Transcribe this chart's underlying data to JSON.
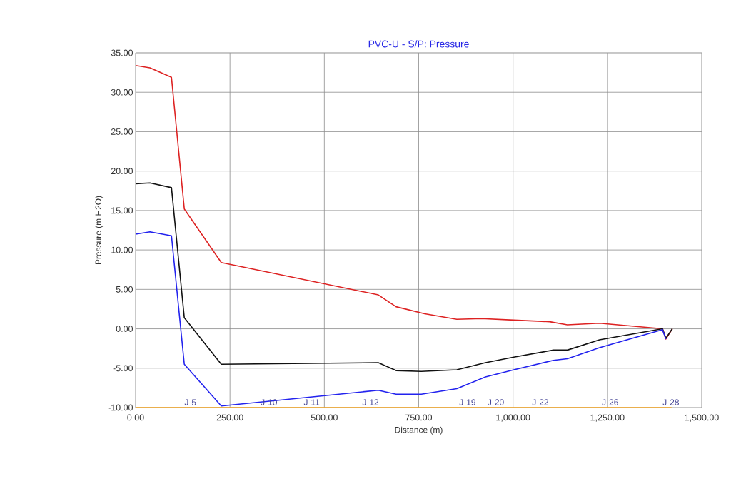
{
  "chart_data": {
    "type": "line",
    "title": "PVC-U  - S/P: Pressure",
    "xlabel": "Distance (m)",
    "ylabel": "Pressure (m H2O)",
    "xlim": [
      0,
      1500
    ],
    "ylim": [
      -10,
      35
    ],
    "xticks": [
      {
        "value": 0,
        "label": "0.00"
      },
      {
        "value": 250,
        "label": "250.00"
      },
      {
        "value": 500,
        "label": "500.00"
      },
      {
        "value": 750,
        "label": "750.00"
      },
      {
        "value": 1000,
        "label": "1,000.00"
      },
      {
        "value": 1250,
        "label": "1,250.00"
      },
      {
        "value": 1500,
        "label": "1,500.00"
      }
    ],
    "yticks": [
      {
        "value": -10,
        "label": "-10.00"
      },
      {
        "value": -5,
        "label": "-5.00"
      },
      {
        "value": 0,
        "label": "0.00"
      },
      {
        "value": 5,
        "label": "5.00"
      },
      {
        "value": 10,
        "label": "10.00"
      },
      {
        "value": 15,
        "label": "15.00"
      },
      {
        "value": 20,
        "label": "20.00"
      },
      {
        "value": 25,
        "label": "25.00"
      },
      {
        "value": 30,
        "label": "30.00"
      },
      {
        "value": 35,
        "label": "35.00"
      }
    ],
    "grid": true,
    "legend": false,
    "marker": "none",
    "line_style": "solid",
    "series": [
      {
        "color": "#f5a623",
        "x": [
          0,
          1420
        ],
        "values": [
          -10,
          -10
        ]
      },
      {
        "color": "#dd2222",
        "x": [
          0,
          38,
          95,
          129,
          227,
          643,
          690,
          766,
          851,
          917,
          1002,
          1097,
          1144,
          1229,
          1396,
          1405,
          1422
        ],
        "values": [
          33.4,
          33.1,
          31.9,
          15.2,
          8.4,
          4.3,
          2.8,
          1.9,
          1.2,
          1.3,
          1.1,
          0.9,
          0.5,
          0.7,
          0.0,
          -1.3,
          0.0
        ]
      },
      {
        "color": "#111111",
        "x": [
          0,
          38,
          95,
          129,
          227,
          643,
          690,
          757,
          851,
          927,
          1002,
          1107,
          1144,
          1229,
          1396,
          1405,
          1422
        ],
        "values": [
          18.4,
          18.5,
          17.9,
          1.4,
          -4.5,
          -4.3,
          -5.3,
          -5.4,
          -5.2,
          -4.3,
          -3.6,
          -2.7,
          -2.7,
          -1.4,
          0.0,
          -1.2,
          0.0
        ]
      },
      {
        "color": "#2222ee",
        "x": [
          0,
          38,
          95,
          129,
          227,
          643,
          690,
          757,
          851,
          927,
          1002,
          1107,
          1144,
          1229,
          1396,
          1405
        ],
        "values": [
          12.0,
          12.3,
          11.8,
          -4.5,
          -9.8,
          -7.8,
          -8.3,
          -8.3,
          -7.6,
          -6.1,
          -5.2,
          -4.0,
          -3.8,
          -2.4,
          -0.1,
          -1.3
        ]
      }
    ],
    "annotations": [
      {
        "text": "J-5",
        "x": 129,
        "y": -10
      },
      {
        "text": "J-10",
        "x": 331,
        "y": -10
      },
      {
        "text": "J-11",
        "x": 445,
        "y": -10
      },
      {
        "text": "J-12",
        "x": 600,
        "y": -10
      },
      {
        "text": "J-19",
        "x": 857,
        "y": -10
      },
      {
        "text": "J-20",
        "x": 932,
        "y": -10
      },
      {
        "text": "J-22",
        "x": 1050,
        "y": -10
      },
      {
        "text": "J-26",
        "x": 1235,
        "y": -10
      },
      {
        "text": "J-28",
        "x": 1396,
        "y": -10
      }
    ]
  }
}
